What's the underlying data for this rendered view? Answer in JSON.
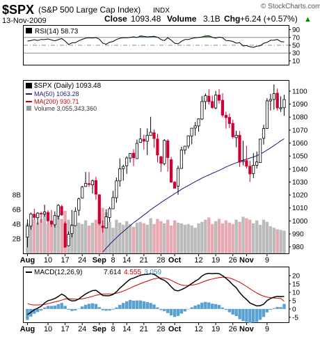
{
  "header": {
    "symbol": "$SPX",
    "name": "(S&P 500 Large Cap Index)",
    "exchange": "INDX",
    "date": "13-Nov-2009",
    "close_label": "Close",
    "close_value": "1093.48",
    "volume_label": "Volume",
    "volume_value": "3.1B",
    "chg_label": "Chg",
    "chg_value": "+6.24 (+0.57%)",
    "chg_arrow": "▲",
    "source": "© StockCharts.com"
  },
  "colors": {
    "up": "#000000",
    "down": "#cc0033",
    "ma50": "#1a1a80",
    "ma200": "#cc0000",
    "vol_up": "#bbbbbb",
    "vol_down": "#e8a8b2",
    "macd_hist": "#5aa0d0",
    "rsi_line": "#000000",
    "chg_green": "#008800"
  },
  "rsi_panel": {
    "legend": "RSI(14) 58.73",
    "ticks": [
      "90",
      "70",
      "50",
      "30",
      "10"
    ]
  },
  "price_panel": {
    "legend_main": "$SPX (Daily) 1093.48",
    "legend_ma50": "MA(50) 1063.28",
    "legend_ma200": "MA(200) 930.71",
    "legend_volume": "Volume 3,055,343,360",
    "price_ticks": [
      "1100",
      "1090",
      "1080",
      "1070",
      "1060",
      "1050",
      "1040",
      "1030",
      "1020",
      "1010",
      "1000",
      "990",
      "980"
    ],
    "volume_ticks": [
      "8B",
      "6B",
      "4B",
      "2B"
    ]
  },
  "macd_panel": {
    "legend_label": "MACD(12,26,9)",
    "legend_v1": "7.614",
    "legend_v2": "4.555",
    "legend_v3": "3.059",
    "ticks": [
      "20",
      "15",
      "10",
      "5",
      "0",
      "-5"
    ]
  },
  "x_axis": {
    "labels": [
      "Aug",
      "10",
      "17",
      "24",
      "Sep",
      "8",
      "14",
      "21",
      "28",
      "Oct",
      "12",
      "19",
      "26",
      "Nov",
      "9"
    ]
  },
  "chart_data": {
    "type": "candlestick",
    "title": "$SPX (S&P 500 Large Cap Index) INDX",
    "price_range": [
      975,
      1108
    ],
    "volume_range_billions": [
      0,
      9.5
    ],
    "rsi_range": [
      0,
      100
    ],
    "macd_range": [
      -8,
      25
    ],
    "legend_placement": "top-left",
    "x_labels": [
      "Aug",
      "10",
      "17",
      "24",
      "Sep",
      "8",
      "14",
      "21",
      "28",
      "Oct",
      "12",
      "19",
      "26",
      "Nov",
      "9"
    ],
    "candles": [
      {
        "o": 987.5,
        "h": 1001.2,
        "l": 979.6,
        "c": 996.1
      },
      {
        "o": 996.0,
        "h": 1006.5,
        "l": 993.4,
        "c": 1005.4
      },
      {
        "o": 1005.2,
        "h": 1009.4,
        "l": 1000.9,
        "c": 1002.7
      },
      {
        "o": 1002.5,
        "h": 1006.8,
        "l": 997.1,
        "c": 1006.0
      },
      {
        "o": 1005.9,
        "h": 1007.2,
        "l": 998.5,
        "c": 1005.6
      },
      {
        "o": 1005.4,
        "h": 1012.5,
        "l": 1003.3,
        "c": 1006.9
      },
      {
        "o": 1006.6,
        "h": 1008.3,
        "l": 997.5,
        "c": 1000.1
      },
      {
        "o": 1000.0,
        "h": 1008.4,
        "l": 995.4,
        "c": 997.6
      },
      {
        "o": 997.0,
        "h": 1007.4,
        "l": 994.9,
        "c": 1004.1
      },
      {
        "o": 1003.8,
        "h": 1012.9,
        "l": 1001.2,
        "c": 1012.0
      },
      {
        "o": 1011.1,
        "h": 1012.4,
        "l": 1003.9,
        "c": 1004.6
      },
      {
        "o": 998.0,
        "h": 999.6,
        "l": 979.7,
        "c": 979.7
      },
      {
        "o": 980.9,
        "h": 991.9,
        "l": 980.6,
        "c": 989.7
      },
      {
        "o": 990.3,
        "h": 1008.4,
        "l": 987.3,
        "c": 996.5
      },
      {
        "o": 996.4,
        "h": 1010.5,
        "l": 996.4,
        "c": 1007.4
      },
      {
        "o": 1008.2,
        "h": 1018.0,
        "l": 1004.0,
        "c": 1017.0
      },
      {
        "o": 1017.6,
        "h": 1027.0,
        "l": 1017.6,
        "c": 1026.1
      },
      {
        "o": 1026.6,
        "h": 1037.7,
        "l": 1026.2,
        "c": 1028.9
      },
      {
        "o": 1028.8,
        "h": 1037.7,
        "l": 1026.2,
        "c": 1028.1
      },
      {
        "o": 1027.8,
        "h": 1032.0,
        "l": 1021.1,
        "c": 1030.9
      },
      {
        "o": 1031.2,
        "h": 1033.9,
        "l": 1016.4,
        "c": 1020.6
      },
      {
        "o": 1020.2,
        "h": 1020.2,
        "l": 996.5,
        "c": 998.0
      },
      {
        "o": 996.1,
        "h": 1000.3,
        "l": 991.0,
        "c": 994.8
      },
      {
        "o": 994.5,
        "h": 1009.0,
        "l": 994.5,
        "c": 1003.2
      },
      {
        "o": 1002.7,
        "h": 1011.0,
        "l": 999.3,
        "c": 1009.4
      },
      {
        "o": 1009.3,
        "h": 1023.2,
        "l": 1009.2,
        "c": 1018.0
      },
      {
        "o": 1017.9,
        "h": 1033.4,
        "l": 1014.0,
        "c": 1030.9
      },
      {
        "o": 1030.9,
        "h": 1048.2,
        "l": 1026.4,
        "c": 1040.1
      },
      {
        "o": 1040.3,
        "h": 1043.4,
        "l": 1031.1,
        "c": 1042.0
      },
      {
        "o": 1042.5,
        "h": 1049.8,
        "l": 1036.3,
        "c": 1048.5
      },
      {
        "o": 1048.4,
        "h": 1052.3,
        "l": 1045.0,
        "c": 1052.0
      },
      {
        "o": 1052.2,
        "h": 1055.3,
        "l": 1042.3,
        "c": 1048.6
      },
      {
        "o": 1048.0,
        "h": 1062.7,
        "l": 1048.0,
        "c": 1059.8
      },
      {
        "o": 1060.5,
        "h": 1071.5,
        "l": 1060.0,
        "c": 1063.1
      },
      {
        "o": 1063.0,
        "h": 1066.5,
        "l": 1055.0,
        "c": 1061.4
      },
      {
        "o": 1061.4,
        "h": 1071.3,
        "l": 1050.7,
        "c": 1065.9
      },
      {
        "o": 1065.8,
        "h": 1080.2,
        "l": 1065.5,
        "c": 1068.3
      },
      {
        "o": 1068.0,
        "h": 1070.4,
        "l": 1056.3,
        "c": 1063.5
      },
      {
        "o": 1063.1,
        "h": 1067.2,
        "l": 1045.1,
        "c": 1050.8
      },
      {
        "o": 1049.5,
        "h": 1050.1,
        "l": 1037.8,
        "c": 1044.4
      },
      {
        "o": 1044.1,
        "h": 1063.0,
        "l": 1042.9,
        "c": 1062.0
      },
      {
        "o": 1061.7,
        "h": 1063.0,
        "l": 1038.0,
        "c": 1048.8
      },
      {
        "o": 1047.2,
        "h": 1049.4,
        "l": 1029.3,
        "c": 1029.9
      },
      {
        "o": 1029.9,
        "h": 1030.7,
        "l": 1025.2,
        "c": 1025.2
      },
      {
        "o": 1026.9,
        "h": 1042.6,
        "l": 1020.2,
        "c": 1040.5
      },
      {
        "o": 1040.4,
        "h": 1057.1,
        "l": 1040.2,
        "c": 1054.7
      },
      {
        "o": 1054.6,
        "h": 1057.8,
        "l": 1051.3,
        "c": 1057.6
      },
      {
        "o": 1057.6,
        "h": 1066.0,
        "l": 1055.7,
        "c": 1065.5
      },
      {
        "o": 1065.5,
        "h": 1071.4,
        "l": 1059.1,
        "c": 1071.5
      },
      {
        "o": 1071.6,
        "h": 1076.2,
        "l": 1065.7,
        "c": 1073.2
      },
      {
        "o": 1073.2,
        "h": 1079.0,
        "l": 1068.8,
        "c": 1078.6
      },
      {
        "o": 1078.5,
        "h": 1096.2,
        "l": 1077.8,
        "c": 1092.0
      },
      {
        "o": 1092.0,
        "h": 1098.2,
        "l": 1085.8,
        "c": 1096.4
      },
      {
        "o": 1096.2,
        "h": 1101.4,
        "l": 1089.6,
        "c": 1091.9
      },
      {
        "o": 1092.0,
        "h": 1096.6,
        "l": 1086.4,
        "c": 1087.3
      },
      {
        "o": 1087.0,
        "h": 1100.2,
        "l": 1086.0,
        "c": 1097.0
      },
      {
        "o": 1097.0,
        "h": 1101.6,
        "l": 1090.5,
        "c": 1092.9
      },
      {
        "o": 1093.0,
        "h": 1098.4,
        "l": 1079.8,
        "c": 1081.5
      },
      {
        "o": 1081.4,
        "h": 1084.2,
        "l": 1071.1,
        "c": 1079.6
      },
      {
        "o": 1079.8,
        "h": 1082.8,
        "l": 1071.4,
        "c": 1075.0
      },
      {
        "o": 1075.1,
        "h": 1078.0,
        "l": 1063.5,
        "c": 1064.8
      },
      {
        "o": 1064.1,
        "h": 1069.5,
        "l": 1056.8,
        "c": 1066.0
      },
      {
        "o": 1066.0,
        "h": 1069.2,
        "l": 1041.6,
        "c": 1045.2
      },
      {
        "o": 1045.7,
        "h": 1061.8,
        "l": 1042.8,
        "c": 1046.4
      },
      {
        "o": 1046.5,
        "h": 1058.0,
        "l": 1040.4,
        "c": 1042.1
      },
      {
        "o": 1042.2,
        "h": 1046.4,
        "l": 1030.0,
        "c": 1036.2
      },
      {
        "o": 1036.5,
        "h": 1052.3,
        "l": 1033.0,
        "c": 1042.9
      },
      {
        "o": 1042.8,
        "h": 1053.4,
        "l": 1040.3,
        "c": 1045.4
      },
      {
        "o": 1045.0,
        "h": 1063.4,
        "l": 1045.0,
        "c": 1063.0
      },
      {
        "o": 1063.6,
        "h": 1074.1,
        "l": 1058.9,
        "c": 1071.2
      },
      {
        "o": 1071.2,
        "h": 1094.6,
        "l": 1070.9,
        "c": 1092.5
      },
      {
        "o": 1092.4,
        "h": 1097.8,
        "l": 1085.0,
        "c": 1093.5
      },
      {
        "o": 1093.6,
        "h": 1105.2,
        "l": 1085.8,
        "c": 1098.1
      },
      {
        "o": 1098.5,
        "h": 1102.0,
        "l": 1085.1,
        "c": 1087.0
      },
      {
        "o": 1086.5,
        "h": 1096.0,
        "l": 1084.0,
        "c": 1087.2
      },
      {
        "o": 1087.2,
        "h": 1097.2,
        "l": 1081.1,
        "c": 1093.5
      }
    ],
    "volume_billions": [
      4.1,
      4.5,
      4.6,
      4.2,
      4.7,
      5.5,
      4.0,
      4.3,
      4.1,
      5.2,
      4.7,
      5.8,
      4.6,
      4.0,
      4.6,
      4.2,
      4.0,
      4.5,
      3.8,
      4.2,
      4.6,
      5.4,
      6.2,
      5.6,
      4.3,
      3.5,
      4.6,
      4.2,
      3.9,
      4.4,
      4.0,
      3.6,
      4.2,
      4.3,
      4.1,
      3.9,
      4.8,
      4.0,
      4.7,
      4.4,
      4.1,
      4.6,
      3.8,
      4.5,
      4.2,
      4.1,
      3.9,
      4.0,
      3.8,
      3.5,
      4.1,
      4.3,
      4.6,
      4.9,
      4.0,
      4.4,
      4.7,
      4.1,
      4.5,
      4.2,
      4.0,
      4.6,
      4.3,
      5.0,
      4.8,
      4.6,
      4.1,
      4.5,
      3.9,
      4.6,
      4.3,
      3.7,
      3.5,
      3.3,
      3.2,
      3.1
    ],
    "ma50": [
      null,
      null,
      null,
      null,
      null,
      null,
      null,
      null,
      null,
      null,
      null,
      null,
      null,
      null,
      null,
      null,
      null,
      null,
      null,
      null,
      null,
      null,
      976.0,
      979.0,
      981.9,
      984.6,
      987.0,
      989.6,
      991.9,
      994.1,
      996.4,
      998.6,
      1000.6,
      1002.5,
      1004.6,
      1006.5,
      1008.6,
      1010.5,
      1012.3,
      1014.1,
      1015.9,
      1017.6,
      1019.3,
      1021.0,
      1022.6,
      1024.3,
      1025.9,
      1027.3,
      1028.8,
      1030.3,
      1031.6,
      1033.0,
      1034.3,
      1035.4,
      1036.7,
      1037.8,
      1038.9,
      1040.2,
      1041.6,
      1042.7,
      1043.8,
      1044.8,
      1045.8,
      1046.9,
      1047.5,
      1048.4,
      1049.3,
      1050.3,
      1051.5,
      1052.9,
      1054.6,
      1056.3,
      1058.0,
      1059.8,
      1061.7,
      1063.3
    ],
    "ma200_y_range_note_free": [],
    "rsi": [
      60.8,
      62.1,
      64.2,
      62.3,
      64.9,
      64.5,
      66.1,
      63.6,
      61.4,
      64.2,
      67.4,
      60.9,
      52.0,
      56.2,
      56.6,
      61.5,
      65.2,
      68.1,
      69.2,
      68.5,
      69.8,
      65.5,
      55.4,
      52.5,
      57.9,
      59.7,
      64.8,
      67.8,
      69.5,
      69.2,
      70.1,
      71.6,
      69.8,
      73.8,
      72.6,
      71.4,
      72.2,
      73.1,
      70.8,
      64.6,
      61.9,
      69.1,
      63.2,
      55.4,
      53.5,
      60.2,
      64.6,
      64.9,
      67.5,
      69.3,
      69.8,
      71.2,
      73.6,
      74.1,
      70.6,
      68.2,
      70.9,
      69.3,
      62.1,
      61.6,
      59.9,
      55.3,
      56.6,
      48.2,
      49.2,
      46.2,
      44.5,
      47.6,
      48.6,
      55.1,
      57.4,
      62.9,
      63.1,
      64.9,
      59.4,
      58.7
    ],
    "macd": [
      -3.4,
      -2.0,
      -0.5,
      0.5,
      1.6,
      3.6,
      5.0,
      5.5,
      6.3,
      7.5,
      8.9,
      7.8,
      5.7,
      4.8,
      5.0,
      6.0,
      7.6,
      9.0,
      10.1,
      11.0,
      11.2,
      9.7,
      8.1,
      7.9,
      8.0,
      8.7,
      10.3,
      12.5,
      14.3,
      16.2,
      17.9,
      18.5,
      19.4,
      20.3,
      20.6,
      20.8,
      21.1,
      20.8,
      19.5,
      17.9,
      17.2,
      15.6,
      13.3,
      11.3,
      10.9,
      11.6,
      12.6,
      13.9,
      15.3,
      16.7,
      17.9,
      19.8,
      21.0,
      21.4,
      21.2,
      21.4,
      21.2,
      20.0,
      18.4,
      16.6,
      14.5,
      12.7,
      9.8,
      7.5,
      5.7,
      3.6,
      2.6,
      1.8,
      2.0,
      2.9,
      5.0,
      6.3,
      7.1,
      7.6,
      7.4,
      7.6
    ],
    "macd_signal": [
      3.2,
      2.6,
      2.4,
      2.4,
      2.5,
      2.7,
      3.2,
      3.7,
      4.3,
      4.7,
      5.3,
      6.0,
      6.2,
      6.0,
      5.9,
      5.9,
      6.1,
      6.5,
      7.0,
      7.6,
      8.2,
      8.6,
      8.9,
      9.0,
      9.0,
      9.1,
      9.4,
      10.0,
      10.7,
      11.6,
      12.5,
      13.5,
      14.3,
      15.2,
      16.0,
      16.7,
      17.5,
      18.1,
      18.5,
      18.6,
      18.5,
      18.1,
      17.2,
      16.1,
      15.1,
      14.4,
      14.1,
      14.1,
      14.3,
      14.7,
      15.2,
      16.0,
      16.8,
      17.5,
      18.0,
      18.5,
      18.8,
      19.1,
      19.0,
      18.6,
      17.9,
      17.0,
      16.0,
      14.8,
      13.5,
      12.1,
      10.8,
      9.6,
      8.5,
      7.7,
      7.1,
      6.8,
      6.6,
      6.4,
      6.3,
      4.6
    ]
  }
}
